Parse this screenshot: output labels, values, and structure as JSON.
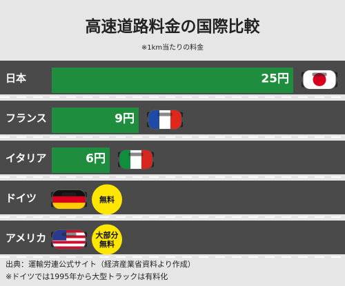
{
  "chart_data": {
    "type": "bar",
    "title": "高速道路料金の国際比較",
    "subtitle": "※1km当たりの料金",
    "categories": [
      "日本",
      "フランス",
      "イタリア",
      "ドイツ",
      "アメリカ"
    ],
    "values": [
      25,
      9,
      6,
      0,
      0
    ],
    "value_labels": [
      "25円",
      "9円",
      "6円",
      "",
      ""
    ],
    "badges": [
      "",
      "",
      "",
      "無料",
      "大部分 無料"
    ],
    "bar_color": "#1e8e3e",
    "badge_color": "#ffe600",
    "flags": [
      "japan",
      "france",
      "italy",
      "germany",
      "usa"
    ],
    "orientation": "horizontal",
    "xlim": [
      0,
      25
    ]
  },
  "footnotes": [
    "出典：運輸労連公式サイト（経済産業省資料より作成）",
    "※ドイツでは1995年から大型トラックは有料化"
  ]
}
